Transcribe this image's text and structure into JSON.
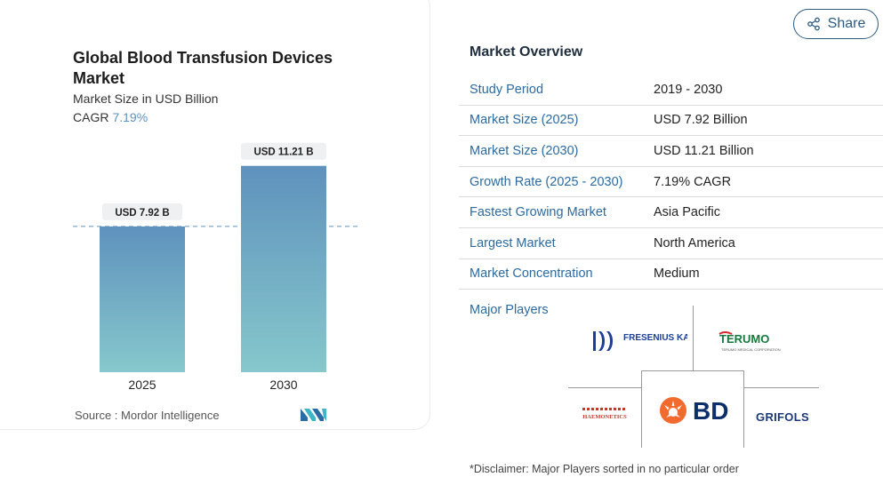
{
  "chart_data": {
    "type": "bar",
    "title": "Global Blood Transfusion Devices Market",
    "subtitle": "Market Size in USD Billion",
    "cagr_label": "CAGR",
    "cagr_value": "7.19%",
    "categories": [
      "2025",
      "2030"
    ],
    "values": [
      7.92,
      11.21
    ],
    "data_labels": [
      "USD 7.92 B",
      "USD 11.21 B"
    ],
    "ylim": [
      0,
      12.5
    ],
    "reference_line": 7.92,
    "source": "Source :  Mordor Intelligence",
    "bar_color_top": "#5f92bd",
    "bar_color_bottom": "#86c8cc"
  },
  "share_label": "Share",
  "overview": {
    "title": "Market Overview",
    "rows": [
      {
        "label": "Study Period",
        "value": "2019 - 2030"
      },
      {
        "label": "Market Size (2025)",
        "value": "USD 7.92 Billion"
      },
      {
        "label": "Market Size (2030)",
        "value": "USD 11.21 Billion"
      },
      {
        "label": "Growth Rate (2025 - 2030)",
        "value": "7.19% CAGR"
      },
      {
        "label": "Fastest Growing Market",
        "value": "Asia Pacific"
      },
      {
        "label": "Largest Market",
        "value": "North America"
      },
      {
        "label": "Market Concentration",
        "value": "Medium"
      }
    ]
  },
  "major_players": {
    "label": "Major Players",
    "logos": [
      "FRESENIUS KABI",
      "TERUMO",
      "HAEMONETICS",
      "BD",
      "GRIFOLS"
    ],
    "terumo_tagline": "TERUMO MEDICAL CORPORATION"
  },
  "disclaimer": "*Disclaimer: Major Players sorted in no particular order",
  "colors": {
    "accent": "#2c6aa0",
    "share": "#2c5a80",
    "bd_orange": "#f26a2e",
    "bd_navy": "#0c2f6b",
    "fresenius": "#1c3f94",
    "terumo_green": "#167a3f",
    "terumo_red": "#d9262b"
  }
}
